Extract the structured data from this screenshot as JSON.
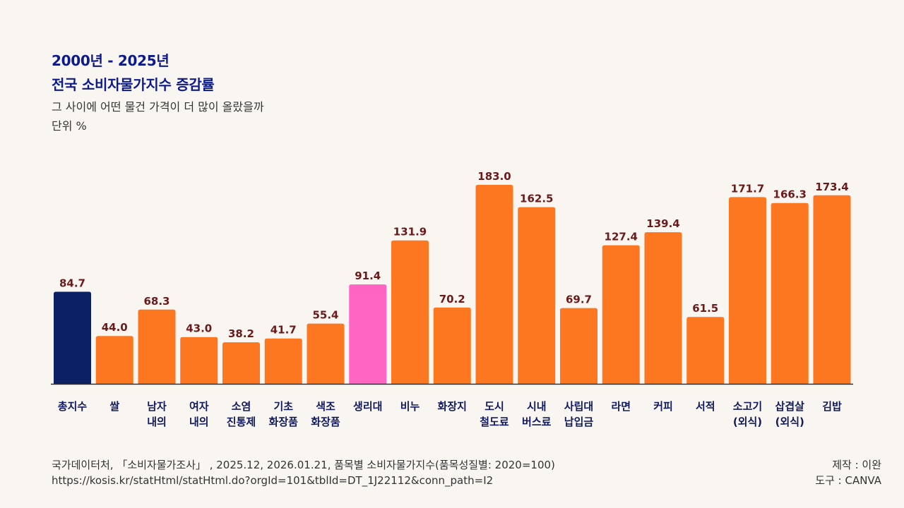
{
  "header": {
    "title_line1": "2000년 - 2025년",
    "title_line2": "전국 소비자물가지수 증감률",
    "subtitle": "그 사이에 어떤 물건 가격이 더 많이 올랐을까",
    "unit": "단위 %"
  },
  "chart_data": {
    "type": "bar",
    "title": "2000년 - 2025년 전국 소비자물가지수 증감률",
    "xlabel": "",
    "ylabel": "단위 %",
    "ylim": [
      0,
      183
    ],
    "grid": false,
    "legend": "none",
    "categories": [
      [
        "총지수"
      ],
      [
        "쌀"
      ],
      [
        "남자",
        "내의"
      ],
      [
        "여자",
        "내의"
      ],
      [
        "소염",
        "진통제"
      ],
      [
        "기초",
        "화장품"
      ],
      [
        "색조",
        "화장품"
      ],
      [
        "생리대"
      ],
      [
        "비누"
      ],
      [
        "화장지"
      ],
      [
        "도시",
        "철도료"
      ],
      [
        "시내",
        "버스료"
      ],
      [
        "사립대",
        "납입금"
      ],
      [
        "라면"
      ],
      [
        "커피"
      ],
      [
        "서적"
      ],
      [
        "소고기",
        "(외식)"
      ],
      [
        "삽겹살",
        "(외식)"
      ],
      [
        "김밥"
      ]
    ],
    "values": [
      84.7,
      44.0,
      68.3,
      43.0,
      38.2,
      41.7,
      55.4,
      91.4,
      131.9,
      70.2,
      183.0,
      162.5,
      69.7,
      127.4,
      139.4,
      61.5,
      171.7,
      166.3,
      173.4
    ],
    "colors": {
      "default": "#fd7620",
      "total": "#0c2163",
      "highlight": "#ff66c4",
      "value_label": "#6b1a1a",
      "category_label": "#101a5c",
      "axis": "#333333"
    },
    "highlights": {
      "total_index": 0,
      "highlight_index": 7
    }
  },
  "footer": {
    "source_line1": "국가데이터처, 「소비자물가조사」 , 2025.12, 2026.01.21, 품목별 소비자물가지수(품목성질별: 2020=100)",
    "source_line2": "https://kosis.kr/statHtml/statHtml.do?orgId=101&tblId=DT_1J22112&conn_path=I2",
    "credit_line1": "제작 : 이완",
    "credit_line2": "도구 : CANVA"
  }
}
